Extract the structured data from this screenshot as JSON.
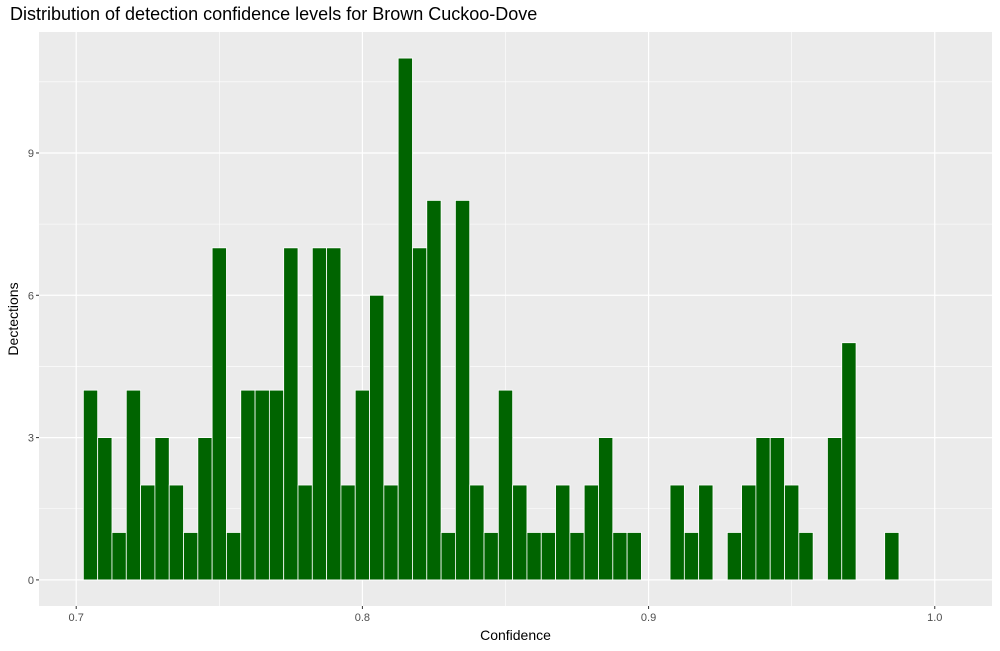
{
  "chart_data": {
    "type": "bar",
    "title": "Distribution of detection confidence levels for Brown Cuckoo-Dove",
    "xlabel": "Confidence",
    "ylabel": "Dectections",
    "xlim": [
      0.687,
      1.02
    ],
    "ylim": [
      -0.55,
      11.55
    ],
    "xticks": [
      0.7,
      0.8,
      0.9,
      1.0
    ],
    "xtick_labels": [
      "0.7",
      "0.8",
      "0.9",
      "1.0"
    ],
    "yticks": [
      0,
      3,
      6,
      9
    ],
    "ytick_labels": [
      "0",
      "3",
      "6",
      "9"
    ],
    "bin_width": 0.005,
    "bins": [
      {
        "x": 0.705,
        "count": 4
      },
      {
        "x": 0.71,
        "count": 3
      },
      {
        "x": 0.715,
        "count": 1
      },
      {
        "x": 0.72,
        "count": 4
      },
      {
        "x": 0.725,
        "count": 2
      },
      {
        "x": 0.73,
        "count": 3
      },
      {
        "x": 0.735,
        "count": 2
      },
      {
        "x": 0.74,
        "count": 1
      },
      {
        "x": 0.745,
        "count": 3
      },
      {
        "x": 0.75,
        "count": 7
      },
      {
        "x": 0.755,
        "count": 1
      },
      {
        "x": 0.76,
        "count": 4
      },
      {
        "x": 0.765,
        "count": 4
      },
      {
        "x": 0.77,
        "count": 4
      },
      {
        "x": 0.775,
        "count": 7
      },
      {
        "x": 0.78,
        "count": 2
      },
      {
        "x": 0.785,
        "count": 7
      },
      {
        "x": 0.79,
        "count": 7
      },
      {
        "x": 0.795,
        "count": 2
      },
      {
        "x": 0.8,
        "count": 4
      },
      {
        "x": 0.805,
        "count": 6
      },
      {
        "x": 0.81,
        "count": 2
      },
      {
        "x": 0.815,
        "count": 11
      },
      {
        "x": 0.82,
        "count": 7
      },
      {
        "x": 0.825,
        "count": 8
      },
      {
        "x": 0.83,
        "count": 1
      },
      {
        "x": 0.835,
        "count": 8
      },
      {
        "x": 0.84,
        "count": 2
      },
      {
        "x": 0.845,
        "count": 1
      },
      {
        "x": 0.85,
        "count": 4
      },
      {
        "x": 0.855,
        "count": 2
      },
      {
        "x": 0.86,
        "count": 1
      },
      {
        "x": 0.865,
        "count": 1
      },
      {
        "x": 0.87,
        "count": 2
      },
      {
        "x": 0.875,
        "count": 1
      },
      {
        "x": 0.88,
        "count": 2
      },
      {
        "x": 0.885,
        "count": 3
      },
      {
        "x": 0.89,
        "count": 1
      },
      {
        "x": 0.895,
        "count": 1
      },
      {
        "x": 0.9,
        "count": 0
      },
      {
        "x": 0.905,
        "count": 0
      },
      {
        "x": 0.91,
        "count": 2
      },
      {
        "x": 0.915,
        "count": 1
      },
      {
        "x": 0.92,
        "count": 2
      },
      {
        "x": 0.925,
        "count": 0
      },
      {
        "x": 0.93,
        "count": 1
      },
      {
        "x": 0.935,
        "count": 2
      },
      {
        "x": 0.94,
        "count": 3
      },
      {
        "x": 0.945,
        "count": 3
      },
      {
        "x": 0.95,
        "count": 2
      },
      {
        "x": 0.955,
        "count": 1
      },
      {
        "x": 0.96,
        "count": 0
      },
      {
        "x": 0.965,
        "count": 3
      },
      {
        "x": 0.97,
        "count": 5
      },
      {
        "x": 0.975,
        "count": 0
      },
      {
        "x": 0.98,
        "count": 0
      },
      {
        "x": 0.985,
        "count": 1
      }
    ],
    "bar_fill": "#006400",
    "bar_outline": "#ffffff",
    "panel_background": "#ebebeb",
    "grid": true,
    "legend": "none"
  }
}
